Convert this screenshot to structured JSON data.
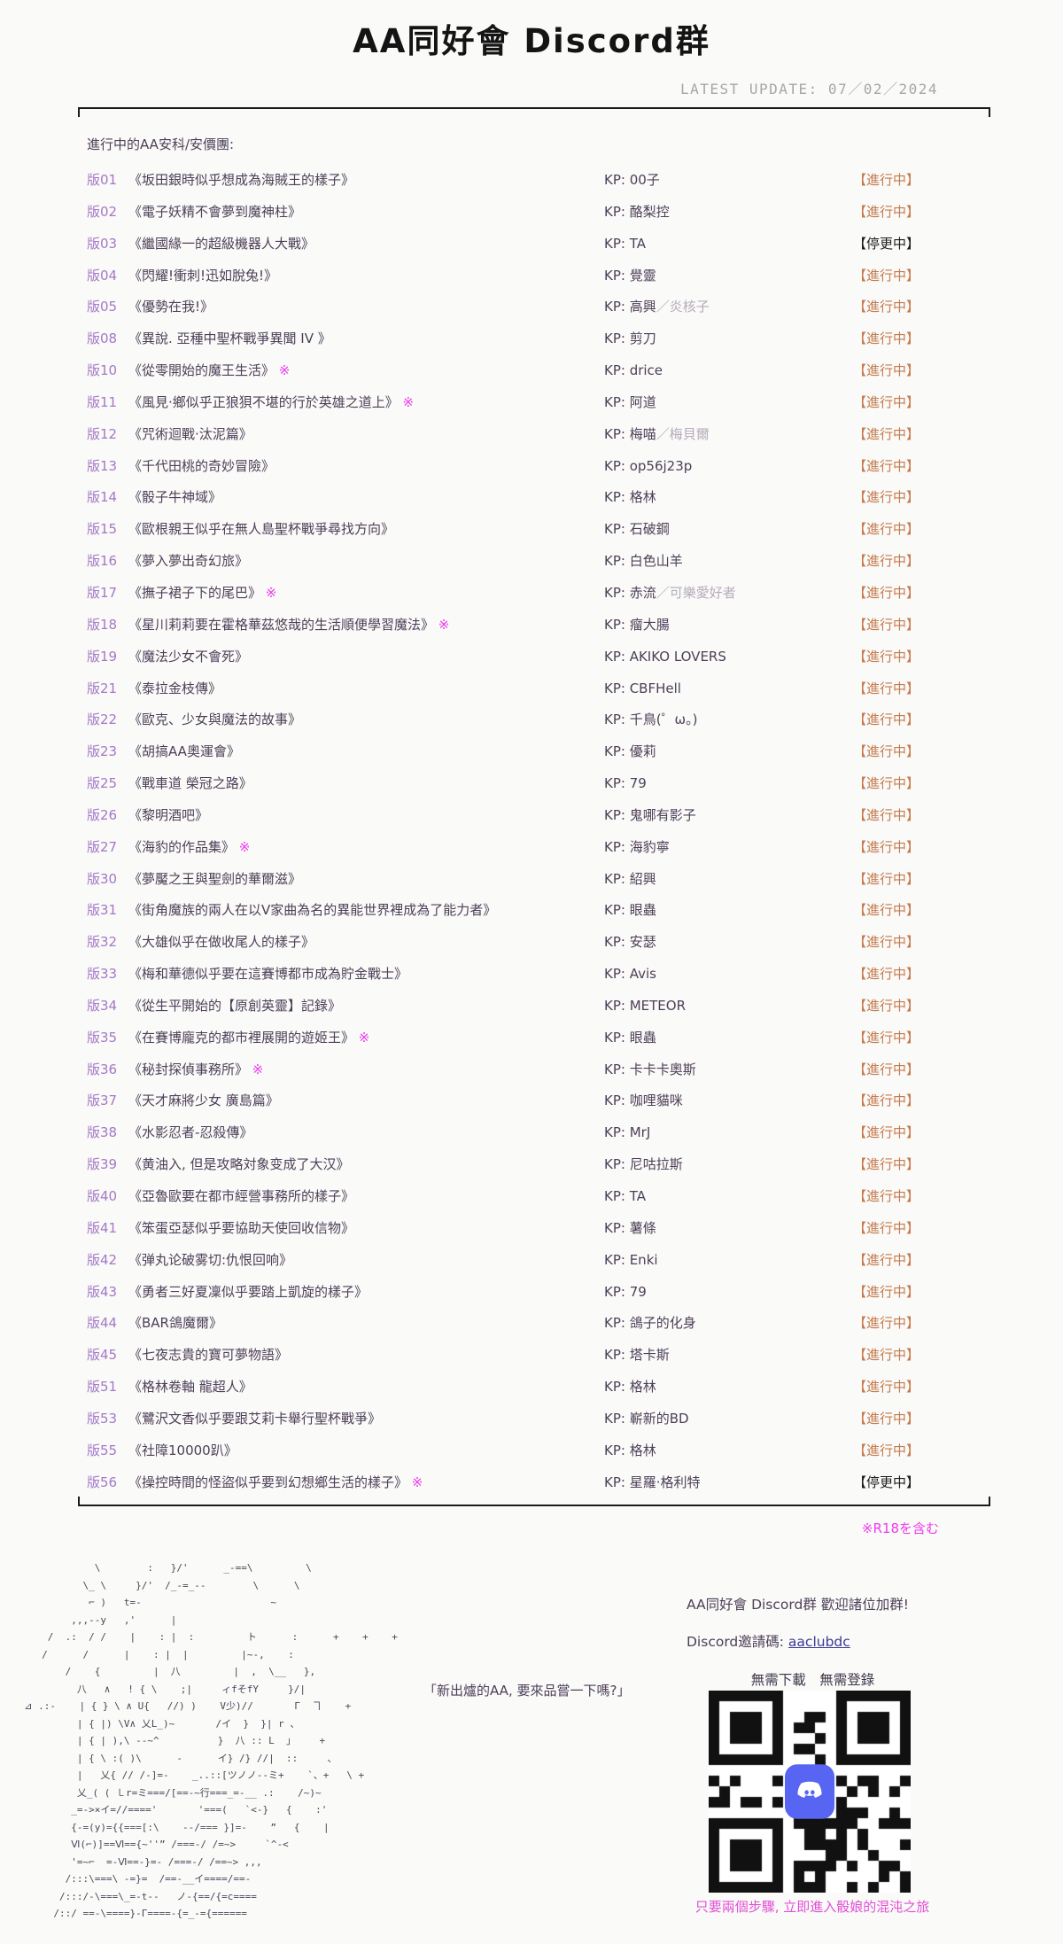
{
  "page": {
    "title": "AA同好會 Discord群",
    "latest_update": "LATEST  UPDATE: 07／02／2024",
    "section_heading": "進行中的AA安科/安價團:",
    "r18_note": "※R18を含む"
  },
  "colors": {
    "status_ongoing": "#c57b4e",
    "status_paused": "#1d1d1d",
    "r18_magenta": "#ee3bee",
    "link_blue": "#3a3a95",
    "discord_blurple": "#5865F2"
  },
  "board": {
    "kp_prefix": "KP: ",
    "r18_mark": "※",
    "status_ongoing_label": "【進行中】",
    "status_paused_label": "【停更中】",
    "rows": [
      {
        "no": "版01",
        "title": "《坂田銀時似乎想成為海賊王的樣子》",
        "r18": false,
        "kp": "00子",
        "kp_sub": "",
        "status": "【進行中】",
        "status_type": "ongoing"
      },
      {
        "no": "版02",
        "title": "《電子妖精不會夢到魔神柱》",
        "r18": false,
        "kp": "酪梨控",
        "kp_sub": "",
        "status": "【進行中】",
        "status_type": "ongoing"
      },
      {
        "no": "版03",
        "title": "《繼國緣一的超級機器人大戰》",
        "r18": false,
        "kp": "TA",
        "kp_sub": "",
        "status": "【停更中】",
        "status_type": "paused"
      },
      {
        "no": "版04",
        "title": "《閃耀!衝刺!迅如脫兔!》",
        "r18": false,
        "kp": "覺靈",
        "kp_sub": "",
        "status": "【進行中】",
        "status_type": "ongoing"
      },
      {
        "no": "版05",
        "title": "《優勢在我!》",
        "r18": false,
        "kp": "高興",
        "kp_sub": "／炎核子",
        "status": "【進行中】",
        "status_type": "ongoing"
      },
      {
        "no": "版08",
        "title": "《異說. 亞種中聖杯戰爭異聞 IV 》",
        "r18": false,
        "kp": "剪刀",
        "kp_sub": "",
        "status": "【進行中】",
        "status_type": "ongoing"
      },
      {
        "no": "版10",
        "title": "《從零開始的魔王生活》",
        "r18": true,
        "kp": "drice",
        "kp_sub": "",
        "status": "【進行中】",
        "status_type": "ongoing"
      },
      {
        "no": "版11",
        "title": "《風見·鄉似乎正狼狽不堪的行於英雄之道上》",
        "r18": true,
        "kp": "阿道",
        "kp_sub": "",
        "status": "【進行中】",
        "status_type": "ongoing"
      },
      {
        "no": "版12",
        "title": "《咒術迴戰·汰泥篇》",
        "r18": false,
        "kp": "梅喵",
        "kp_sub": "／梅貝爾",
        "status": "【進行中】",
        "status_type": "ongoing"
      },
      {
        "no": "版13",
        "title": "《千代田桃的奇妙冒險》",
        "r18": false,
        "kp": "op56j23p",
        "kp_sub": "",
        "status": "【進行中】",
        "status_type": "ongoing"
      },
      {
        "no": "版14",
        "title": "《骰子牛神域》",
        "r18": false,
        "kp": "格林",
        "kp_sub": "",
        "status": "【進行中】",
        "status_type": "ongoing"
      },
      {
        "no": "版15",
        "title": "《歐根親王似乎在無人島聖杯戰爭尋找方向》",
        "r18": false,
        "kp": "石破鋼",
        "kp_sub": "",
        "status": "【進行中】",
        "status_type": "ongoing"
      },
      {
        "no": "版16",
        "title": "《夢入夢出奇幻旅》",
        "r18": false,
        "kp": "白色山羊",
        "kp_sub": "",
        "status": "【進行中】",
        "status_type": "ongoing"
      },
      {
        "no": "版17",
        "title": "《撫子裙子下的尾巴》",
        "r18": true,
        "kp": "赤流",
        "kp_sub": "／可樂愛好者",
        "status": "【進行中】",
        "status_type": "ongoing"
      },
      {
        "no": "版18",
        "title": "《星川莉莉要在霍格華茲悠哉的生活順便學習魔法》",
        "r18": true,
        "kp": "瘤大腸",
        "kp_sub": "",
        "status": "【進行中】",
        "status_type": "ongoing"
      },
      {
        "no": "版19",
        "title": "《魔法少女不會死》",
        "r18": false,
        "kp": "AKIKO LOVERS",
        "kp_sub": "",
        "status": "【進行中】",
        "status_type": "ongoing"
      },
      {
        "no": "版21",
        "title": "《泰拉金枝傳》",
        "r18": false,
        "kp": "CBFHell",
        "kp_sub": "",
        "status": "【進行中】",
        "status_type": "ongoing"
      },
      {
        "no": "版22",
        "title": "《歐克、少女與魔法的故事》",
        "r18": false,
        "kp": "千鳥(゜ω。)",
        "kp_sub": "",
        "status": "【進行中】",
        "status_type": "ongoing"
      },
      {
        "no": "版23",
        "title": "《胡搞AA奧運會》",
        "r18": false,
        "kp": "優莉",
        "kp_sub": "",
        "status": "【進行中】",
        "status_type": "ongoing"
      },
      {
        "no": "版25",
        "title": "《戰車道 榮冠之路》",
        "r18": false,
        "kp": "79",
        "kp_sub": "",
        "status": "【進行中】",
        "status_type": "ongoing"
      },
      {
        "no": "版26",
        "title": "《黎明酒吧》",
        "r18": false,
        "kp": "鬼哪有影子",
        "kp_sub": "",
        "status": "【進行中】",
        "status_type": "ongoing"
      },
      {
        "no": "版27",
        "title": "《海豹的作品集》",
        "r18": true,
        "kp": "海豹寧",
        "kp_sub": "",
        "status": "【進行中】",
        "status_type": "ongoing"
      },
      {
        "no": "版30",
        "title": "《夢魘之王與聖劍的華爾滋》",
        "r18": false,
        "kp": "紹興",
        "kp_sub": "",
        "status": "【進行中】",
        "status_type": "ongoing"
      },
      {
        "no": "版31",
        "title": "《街角魔族的兩人在以V家曲為名的異能世界裡成為了能力者》",
        "r18": false,
        "kp": "眼蟲",
        "kp_sub": "",
        "status": "【進行中】",
        "status_type": "ongoing"
      },
      {
        "no": "版32",
        "title": "《大雄似乎在做收尾人的樣子》",
        "r18": false,
        "kp": "安瑟",
        "kp_sub": "",
        "status": "【進行中】",
        "status_type": "ongoing"
      },
      {
        "no": "版33",
        "title": "《梅和華德似乎要在這賽博都市成為貯金戰士》",
        "r18": false,
        "kp": "Avis",
        "kp_sub": "",
        "status": "【進行中】",
        "status_type": "ongoing"
      },
      {
        "no": "版34",
        "title": "《從生平開始的【原創英靈】記錄》",
        "r18": false,
        "kp": "METEOR",
        "kp_sub": "",
        "status": "【進行中】",
        "status_type": "ongoing"
      },
      {
        "no": "版35",
        "title": "《在賽博龐克的都市裡展開的遊姬王》",
        "r18": true,
        "kp": "眼蟲",
        "kp_sub": "",
        "status": "【進行中】",
        "status_type": "ongoing"
      },
      {
        "no": "版36",
        "title": "《秘封探偵事務所》",
        "r18": true,
        "kp": "卡卡卡奧斯",
        "kp_sub": "",
        "status": "【進行中】",
        "status_type": "ongoing"
      },
      {
        "no": "版37",
        "title": "《天才麻將少女 廣島篇》",
        "r18": false,
        "kp": "咖哩貓咪",
        "kp_sub": "",
        "status": "【進行中】",
        "status_type": "ongoing"
      },
      {
        "no": "版38",
        "title": "《水影忍者-忍殺傳》",
        "r18": false,
        "kp": "MrJ",
        "kp_sub": "",
        "status": "【進行中】",
        "status_type": "ongoing"
      },
      {
        "no": "版39",
        "title": "《黄油入, 但是攻略対象变成了大汉》",
        "r18": false,
        "kp": "尼咕拉斯",
        "kp_sub": "",
        "status": "【進行中】",
        "status_type": "ongoing"
      },
      {
        "no": "版40",
        "title": "《亞魯歐要在都市經營事務所的樣子》",
        "r18": false,
        "kp": "TA",
        "kp_sub": "",
        "status": "【進行中】",
        "status_type": "ongoing"
      },
      {
        "no": "版41",
        "title": "《笨蛋亞瑟似乎要協助天使回收信物》",
        "r18": false,
        "kp": "薯條",
        "kp_sub": "",
        "status": "【進行中】",
        "status_type": "ongoing"
      },
      {
        "no": "版42",
        "title": "《弹丸论破雾切:仇恨回响》",
        "r18": false,
        "kp": "Enki",
        "kp_sub": "",
        "status": "【進行中】",
        "status_type": "ongoing"
      },
      {
        "no": "版43",
        "title": "《勇者三好夏凜似乎要踏上凱旋的樣子》",
        "r18": false,
        "kp": "79",
        "kp_sub": "",
        "status": "【進行中】",
        "status_type": "ongoing"
      },
      {
        "no": "版44",
        "title": "《BAR鴿魔爾》",
        "r18": false,
        "kp": "鴿子的化身",
        "kp_sub": "",
        "status": "【進行中】",
        "status_type": "ongoing"
      },
      {
        "no": "版45",
        "title": "《七夜志貴的寶可夢物語》",
        "r18": false,
        "kp": "塔卡斯",
        "kp_sub": "",
        "status": "【進行中】",
        "status_type": "ongoing"
      },
      {
        "no": "版51",
        "title": "《格林卷軸 龍超人》",
        "r18": false,
        "kp": "格林",
        "kp_sub": "",
        "status": "【進行中】",
        "status_type": "ongoing"
      },
      {
        "no": "版53",
        "title": "《鷺沢文香似乎要跟艾莉卡舉行聖杯戰爭》",
        "r18": false,
        "kp": "嶄新的BD",
        "kp_sub": "",
        "status": "【進行中】",
        "status_type": "ongoing"
      },
      {
        "no": "版55",
        "title": "《社障10000趴》",
        "r18": false,
        "kp": "格林",
        "kp_sub": "",
        "status": "【進行中】",
        "status_type": "ongoing"
      },
      {
        "no": "版56",
        "title": "《操控時間的怪盜似乎要到幻想鄉生活的樣子》",
        "r18": true,
        "kp": "星羅·格利特",
        "kp_sub": "",
        "status": "【停更中】",
        "status_type": "paused"
      }
    ]
  },
  "footer": {
    "speech": "「新出爐的AA, 要來品嘗一下嗎?」",
    "invite_heading": "AA同好會 Discord群  歡迎諸位加群!",
    "invite_code_label": "Discord邀請碼: ",
    "invite_code": "aaclubdc",
    "no_download": "無需下載　無需登錄",
    "qr_caption": "只要兩個步驟, 立即進入骰娘的混沌之旅",
    "qr_icon": "discord-logo",
    "aa_lines": [
      "              \\        :   }/'      _-==\\         \\",
      "            \\_ \\     }/'  /_-=_--        \\      \\",
      "             ⌐ )   t=-                      ~",
      "          ,,,--y   ,'      |",
      "      /  .:  / /    |    : |  :         ト      :      +    +    +",
      "     /      /      |    : |  |         |~-,    :",
      "         /    {         |  八         |  ,  \\__   },",
      "           八   ∧   ! { \\    ;|     ィfそfY     }/|",
      "  ⊿ .:-    | { } \\ ∧ U{   //) )    V少)//       Γ  ヿ    +",
      "           | { |) \\V∧ 乂L_)~       /イ  }  }| r 、",
      "           | { | ),\\ --~^          }  八 :: L  」    +",
      "           | { \\ :( )\\      -      イ} /} //|  ::     、",
      "           |   乂{ // /-]=-    _..::[ツノノ--ミ+    `、+   \\ +",
      "           乂_( ( ㇄r=ミ===/[==-~行===_=-__ .:    /~)~",
      "          _=->×イ=//===='       '===(   `<-}   {    :'",
      "          {-=(y)={{===[:\\    --/=== }]=-    ”   {    |",
      "          Ⅵ(⌐)]==Ⅵ=={~''” /===-/ /=~>     `^-<",
      "          '=~⌐  =-Ⅵ==-}=- /===-/ /==~> ,,,",
      "         /:::\\===\\ -=}=  /==-__イ====/==-",
      "        /:::/-\\===\\_=-t--   ノ-{==/{=c====",
      "       /::/ ==-\\====}-Γ====-{=_-={======"
    ]
  }
}
